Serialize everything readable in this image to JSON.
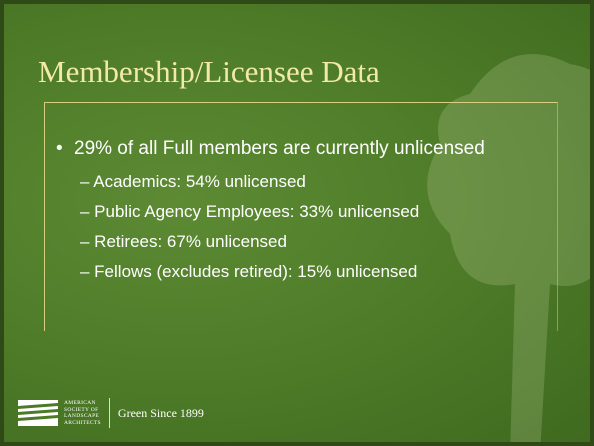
{
  "slide": {
    "title": "Membership/Licensee Data",
    "bullets": [
      {
        "text": "29% of all Full members are currently unlicensed",
        "sub_bullets": [
          "– Academics: 54% unlicensed",
          "– Public Agency Employees: 33% unlicensed",
          "– Retirees: 67% unlicensed",
          "– Fellows (excludes retired): 15% unlicensed"
        ]
      }
    ],
    "footer": {
      "logo_lines": [
        "AMERICAN",
        "SOCIETY OF",
        "LANDSCAPE",
        "ARCHITECTS"
      ],
      "tagline": "Green Since 1899"
    }
  }
}
